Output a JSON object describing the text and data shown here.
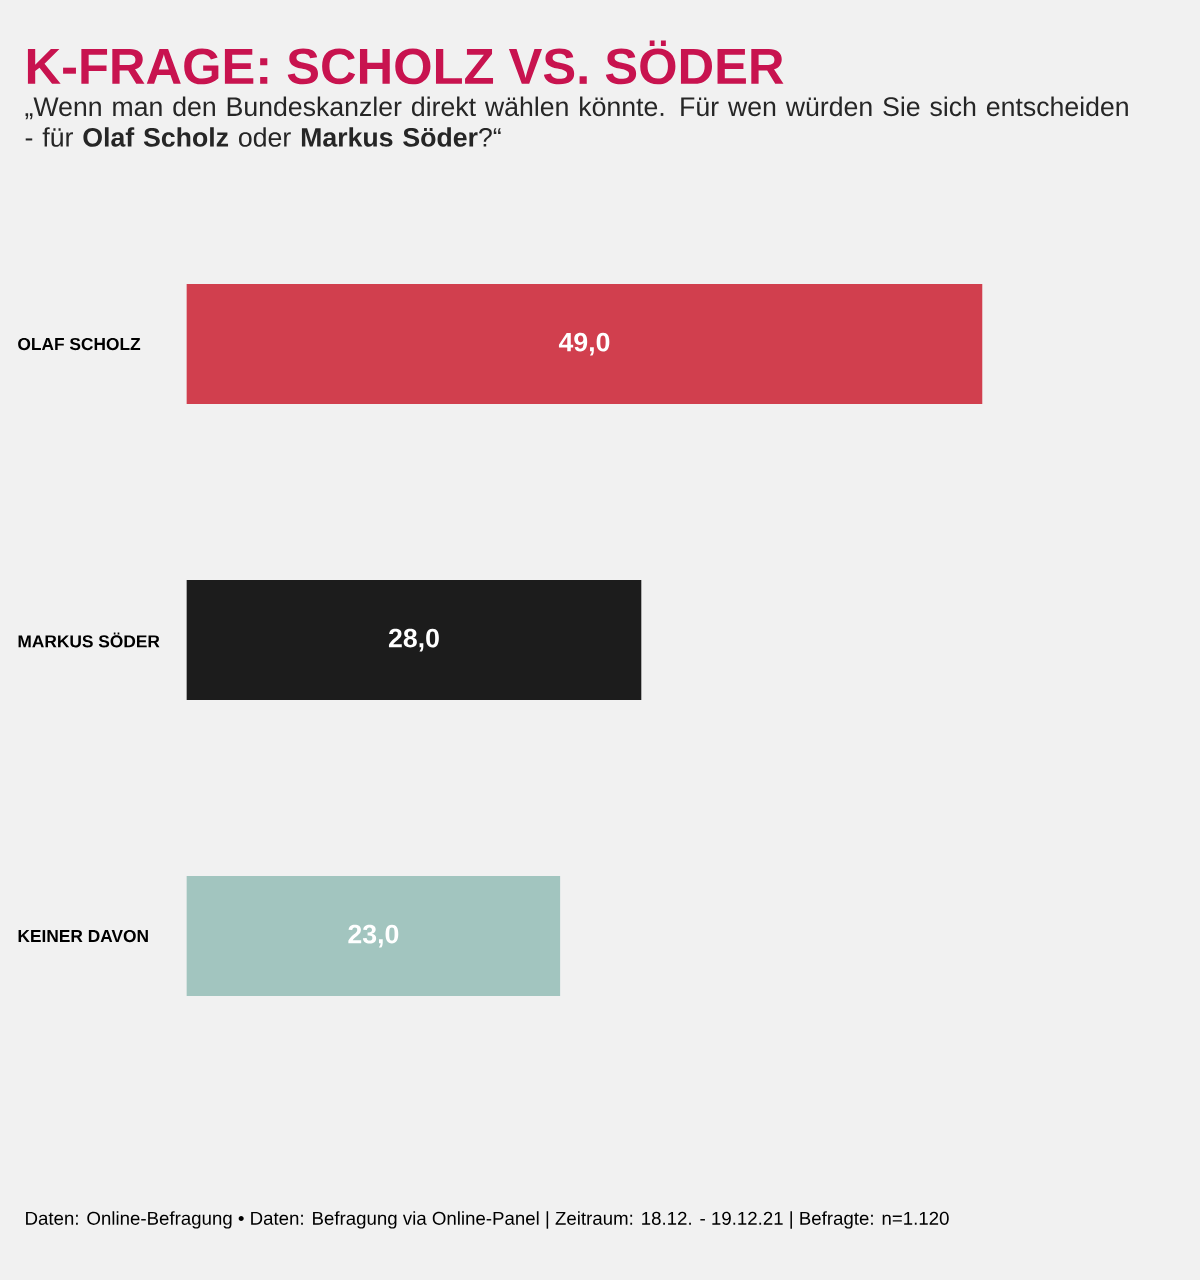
{
  "chart_data": {
    "type": "bar",
    "orientation": "horizontal",
    "title": "K-FRAGE: SCHOLZ VS. SÖDER",
    "subtitle": "„Wenn man den Bundeskanzler direkt wählen könnte. Für wen würden Sie sich entscheiden - für **Olaf Scholz** oder **Markus Söder**?“",
    "categories": [
      "OLAF SCHOLZ",
      "MARKUS SÖDER",
      "KEINER DAVON"
    ],
    "values": [
      49.0,
      28.0,
      23.0
    ],
    "value_labels": [
      "49,0",
      "28,0",
      "23,0"
    ],
    "colors": [
      "#d13f4e",
      "#1c1c1c",
      "#a2c5bf"
    ],
    "tick_labels": "y",
    "annotations": [
      "Daten: Online-Befragung • Daten: Befragung via Online-Panel | Zeitraum: 18.12. - 19.12.21 | Befragte: n=1.120"
    ]
  }
}
